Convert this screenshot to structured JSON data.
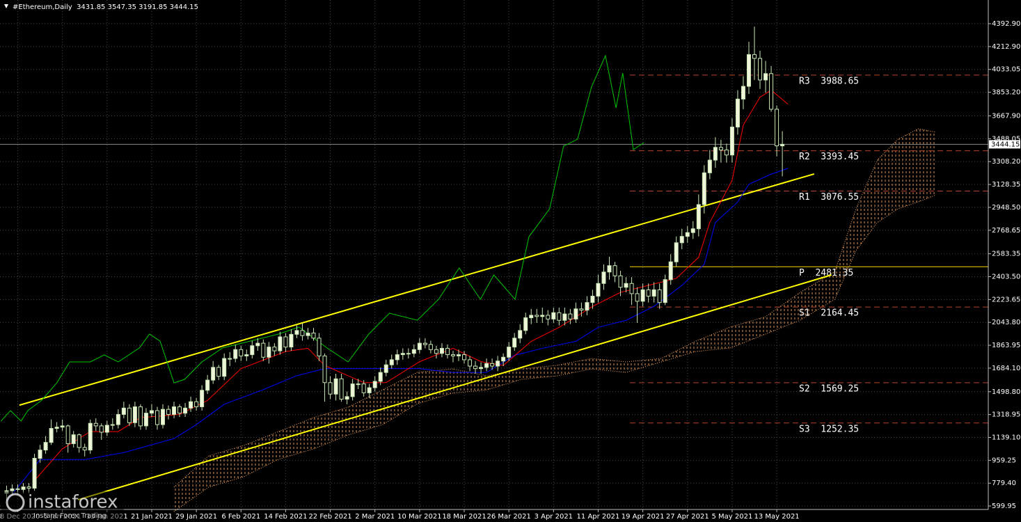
{
  "chart_data": {
    "type": "candlestick",
    "title": "#Ethereum,Daily  3431.85 3547.35 3191.85 3444.15",
    "xlim": [
      -1.18,
      175.9
    ],
    "ylim": [
      572.6,
      4579
    ],
    "grid": true,
    "yticks": [
      599.95,
      {
        "value": 779.4,
        "label": "779.40"
      },
      959.25,
      {
        "value": 1139.1,
        "label": "1139.10"
      },
      1318.95,
      {
        "value": 1498.8,
        "label": "1498.80"
      },
      {
        "value": 1684.1,
        "label": "1684.10"
      },
      1863.95,
      {
        "value": 2043.8,
        "label": "2043.80"
      },
      2223.65,
      {
        "value": 2403.5,
        "label": "2403.50"
      },
      2583.35,
      2768.65,
      {
        "value": 2948.5,
        "label": "2948.50"
      },
      3128.35,
      {
        "value": 3308.2,
        "label": "3308.20"
      },
      3488.05,
      {
        "value": 3667.9,
        "label": "3667.90"
      },
      {
        "value": 3853.2,
        "label": "3853.20"
      },
      4033.05,
      {
        "value": 4212.9,
        "label": "4212.90"
      },
      {
        "value": 4392.9,
        "label": "4392.90"
      }
    ],
    "xticks": [
      {
        "value": 2,
        "label": "28 Dec 2020"
      },
      {
        "value": 10,
        "label": "5 Jan 2021"
      },
      {
        "value": 18,
        "label": "13 Jan 2021"
      },
      {
        "value": 26,
        "label": "21 Jan 2021"
      },
      {
        "value": 34,
        "label": "29 Jan 2021"
      },
      {
        "value": 42,
        "label": "6 Feb 2021"
      },
      {
        "value": 50,
        "label": "14 Feb 2021"
      },
      {
        "value": 58,
        "label": "22 Feb 2021"
      },
      {
        "value": 66,
        "label": "2 Mar 2021"
      },
      {
        "value": 74,
        "label": "10 Mar 2021"
      },
      {
        "value": 82,
        "label": "18 Mar 2021"
      },
      {
        "value": 90,
        "label": "26 Mar 2021"
      },
      {
        "value": 98,
        "label": "3 Apr 2021"
      },
      {
        "value": 106,
        "label": "11 Apr 2021"
      },
      {
        "value": 114,
        "label": "19 Apr 2021"
      },
      {
        "value": 122,
        "label": "27 Apr 2021"
      },
      {
        "value": 130,
        "label": "5 May 2021"
      },
      {
        "value": 138,
        "label": "13 May 2021"
      }
    ],
    "up_color": "#eef5d8",
    "down_color": "#000000",
    "wick_color": "#c8e6b4",
    "open": [
      700,
      720,
      735,
      730,
      750,
      740,
      975,
      1040,
      1100,
      1210,
      1220,
      1230,
      1090,
      1160,
      1060,
      1040,
      1250,
      1230,
      1180,
      1235,
      1240,
      1320,
      1370,
      1255,
      1380,
      1230,
      1330,
      1350,
      1240,
      1360,
      1320,
      1380,
      1330,
      1370,
      1420,
      1380,
      1510,
      1590,
      1690,
      1620,
      1760,
      1760,
      1830,
      1780,
      1790,
      1860,
      1880,
      1770,
      1850,
      1820,
      1930,
      1850,
      1950,
      1980,
      1940,
      1960,
      1920,
      1780,
      1570,
      1480,
      1600,
      1440,
      1460,
      1560,
      1560,
      1490,
      1530,
      1580,
      1650,
      1710,
      1750,
      1790,
      1800,
      1800,
      1830,
      1880,
      1870,
      1830,
      1800,
      1840,
      1790,
      1780,
      1790,
      1750,
      1700,
      1680,
      1690,
      1720,
      1700,
      1740,
      1770,
      1850,
      1920,
      1980,
      2080,
      2100,
      2090,
      2100,
      2070,
      2120,
      2060,
      2110,
      2070,
      2150,
      2140,
      2200,
      2250,
      2350,
      2440,
      2490,
      2410,
      2320,
      2350,
      2270,
      2210,
      2300,
      2250,
      2300,
      2200,
      2380,
      2520,
      2670,
      2720,
      2750,
      2780,
      2970,
      3220,
      3320,
      3420,
      3400,
      3360,
      3580,
      3800,
      3900,
      4150,
      4120,
      3950,
      4000,
      3720,
      3431.85
    ],
    "high": [
      760,
      770,
      770,
      780,
      780,
      1010,
      1080,
      1150,
      1280,
      1260,
      1280,
      1240,
      1190,
      1170,
      1090,
      1280,
      1290,
      1250,
      1270,
      1290,
      1360,
      1420,
      1400,
      1420,
      1400,
      1370,
      1400,
      1380,
      1400,
      1390,
      1420,
      1400,
      1410,
      1460,
      1450,
      1550,
      1630,
      1740,
      1710,
      1800,
      1810,
      1870,
      1860,
      1830,
      1900,
      1920,
      1910,
      1890,
      1880,
      1970,
      1960,
      1990,
      2020,
      2040,
      2000,
      2000,
      1960,
      1800,
      1620,
      1640,
      1640,
      1500,
      1600,
      1600,
      1590,
      1560,
      1620,
      1690,
      1750,
      1790,
      1830,
      1840,
      1840,
      1870,
      1920,
      1920,
      1900,
      1860,
      1880,
      1870,
      1820,
      1830,
      1820,
      1780,
      1740,
      1730,
      1760,
      1760,
      1780,
      1800,
      1890,
      1960,
      2030,
      2120,
      2150,
      2150,
      2160,
      2140,
      2160,
      2160,
      2160,
      2150,
      2200,
      2200,
      2250,
      2300,
      2420,
      2500,
      2560,
      2520,
      2450,
      2400,
      2400,
      2320,
      2350,
      2350,
      2360,
      2350,
      2420,
      2580,
      2720,
      2780,
      2800,
      2840,
      3050,
      3280,
      3400,
      3500,
      3480,
      3450,
      3650,
      3870,
      3980,
      4250,
      4370,
      4180,
      4100,
      4060,
      3750,
      3547.35
    ],
    "low": [
      640,
      680,
      690,
      700,
      700,
      720,
      940,
      1010,
      1080,
      1180,
      1190,
      1020,
      1060,
      1020,
      990,
      1010,
      1190,
      1120,
      1150,
      1200,
      1210,
      1290,
      1230,
      1220,
      1200,
      1200,
      1300,
      1200,
      1210,
      1280,
      1290,
      1300,
      1300,
      1340,
      1350,
      1350,
      1480,
      1560,
      1590,
      1590,
      1700,
      1730,
      1740,
      1740,
      1760,
      1820,
      1740,
      1720,
      1780,
      1790,
      1810,
      1820,
      1920,
      1900,
      1910,
      1900,
      1740,
      1420,
      1440,
      1430,
      1420,
      1400,
      1430,
      1520,
      1460,
      1450,
      1500,
      1550,
      1620,
      1680,
      1710,
      1750,
      1760,
      1770,
      1800,
      1840,
      1800,
      1760,
      1770,
      1760,
      1730,
      1740,
      1720,
      1660,
      1640,
      1640,
      1660,
      1670,
      1660,
      1700,
      1740,
      1820,
      1880,
      1950,
      2030,
      2040,
      2040,
      2020,
      2040,
      2020,
      2020,
      2030,
      2040,
      2090,
      2100,
      2150,
      2200,
      2300,
      2380,
      2360,
      2250,
      2280,
      2180,
      2040,
      2170,
      2200,
      2200,
      2150,
      2180,
      2340,
      2480,
      2620,
      2670,
      2700,
      2720,
      2900,
      3170,
      3260,
      3300,
      3300,
      3300,
      3520,
      3720,
      3840,
      3950,
      3880,
      3850,
      3700,
      3350,
      3191.85
    ],
    "close": [
      720,
      735,
      730,
      750,
      740,
      975,
      1040,
      1100,
      1210,
      1220,
      1230,
      1090,
      1160,
      1060,
      1040,
      1250,
      1230,
      1180,
      1235,
      1240,
      1320,
      1370,
      1255,
      1380,
      1230,
      1330,
      1350,
      1240,
      1360,
      1320,
      1380,
      1330,
      1370,
      1420,
      1380,
      1510,
      1590,
      1690,
      1620,
      1760,
      1760,
      1830,
      1780,
      1790,
      1860,
      1880,
      1770,
      1850,
      1820,
      1930,
      1850,
      1950,
      1980,
      1940,
      1960,
      1920,
      1780,
      1570,
      1480,
      1600,
      1440,
      1460,
      1560,
      1560,
      1490,
      1530,
      1580,
      1650,
      1710,
      1750,
      1790,
      1800,
      1800,
      1830,
      1880,
      1870,
      1830,
      1800,
      1840,
      1790,
      1780,
      1790,
      1750,
      1700,
      1680,
      1690,
      1720,
      1700,
      1740,
      1770,
      1850,
      1920,
      1980,
      2080,
      2100,
      2090,
      2100,
      2070,
      2120,
      2060,
      2110,
      2070,
      2150,
      2140,
      2200,
      2250,
      2350,
      2440,
      2490,
      2410,
      2320,
      2350,
      2270,
      2210,
      2300,
      2250,
      2300,
      2200,
      2380,
      2520,
      2670,
      2720,
      2750,
      2780,
      2970,
      3220,
      3320,
      3420,
      3400,
      3360,
      3580,
      3800,
      3900,
      4150,
      4120,
      3950,
      4000,
      3720,
      3432,
      3444.15
    ],
    "tenkan": {
      "color": "#ff0000",
      "x": [
        5,
        10,
        15,
        20,
        24,
        31,
        36,
        42,
        50,
        54,
        57,
        64,
        68,
        74,
        80,
        85,
        89,
        94,
        99,
        105,
        110,
        115,
        120,
        124,
        126,
        130,
        132,
        135,
        137,
        140
      ],
      "values": [
        800,
        1050,
        1185,
        1185,
        1295,
        1320,
        1430,
        1680,
        1815,
        1840,
        1705,
        1570,
        1570,
        1735,
        1840,
        1735,
        1705,
        1895,
        2005,
        2170,
        2280,
        2335,
        2390,
        2555,
        2830,
        3160,
        3595,
        3815,
        3870,
        3760
      ]
    },
    "kijun": {
      "color": "#0000ff",
      "x": [
        0,
        6,
        14,
        21,
        30,
        34,
        39,
        46,
        52,
        57,
        65,
        74,
        80,
        86,
        91,
        96,
        102,
        106,
        111,
        116,
        121,
        125,
        127,
        131,
        133,
        137,
        140
      ],
      "values": [
        638,
        965,
        965,
        1020,
        1130,
        1240,
        1400,
        1515,
        1625,
        1680,
        1680,
        1680,
        1650,
        1650,
        1785,
        1840,
        1895,
        2005,
        2060,
        2170,
        2335,
        2500,
        2830,
        2990,
        3130,
        3210,
        3255
      ]
    },
    "chikou": {
      "color": "#00c800",
      "x": [
        -1,
        0.7,
        2.6,
        3.8,
        6.3,
        9,
        11.3,
        15,
        17.5,
        20,
        23.8,
        25.6,
        27.5,
        30,
        31.9,
        35,
        38.7,
        43.7,
        48.7,
        52.4,
        57.4,
        61.2,
        64.9,
        68.6,
        73.6,
        77.4,
        81.1,
        84.9,
        87.3,
        91.1,
        93.6,
        97.3,
        99.8,
        102.3,
        104.8,
        107.3,
        109.2,
        110.4,
        112.3,
        114.2
      ],
      "values": [
        1268,
        1350,
        1268,
        1350,
        1432,
        1568,
        1733,
        1733,
        1788,
        1733,
        1843,
        1952,
        1897,
        1568,
        1596,
        1733,
        1843,
        1897,
        1952,
        2007,
        1843,
        1733,
        1952,
        2116,
        2061,
        2225,
        2472,
        2225,
        2417,
        2225,
        2718,
        2937,
        3430,
        3484,
        3895,
        4141,
        3731,
        4004,
        3402,
        3457
      ]
    },
    "cloud": {
      "color": "#f4a460",
      "x": [
        30,
        36.2,
        42.5,
        48.7,
        55,
        61.2,
        67.4,
        73.6,
        79.9,
        86.1,
        92.3,
        98.6,
        104.8,
        111,
        117.3,
        123.5,
        129.7,
        136,
        142.2,
        148.4,
        152.2,
        156,
        159.7,
        163.4,
        166.5
      ],
      "upper": [
        748,
        994,
        1076,
        1185,
        1295,
        1377,
        1514,
        1651,
        1678,
        1623,
        1678,
        1706,
        1760,
        1733,
        1760,
        1897,
        2007,
        2089,
        2280,
        2444,
        2937,
        3320,
        3484,
        3567,
        3539
      ],
      "lower": [
        556,
        748,
        830,
        967,
        1049,
        1158,
        1240,
        1404,
        1487,
        1514,
        1596,
        1623,
        1678,
        1651,
        1733,
        1815,
        1843,
        1952,
        2061,
        2225,
        2608,
        2828,
        2937,
        2992,
        3046
      ]
    },
    "channels": [
      {
        "color": "#ffff00",
        "x": [
          2.3,
          144.7
        ],
        "values": [
          1393,
          3211
        ]
      },
      {
        "color": "#ffff00",
        "x": [
          12.8,
          147.8
        ],
        "values": [
          649,
          2417
        ]
      }
    ],
    "pivot_color": "#b5442c",
    "pivot_p_color": "#ffd700",
    "pivots": [
      {
        "value": 3988.65,
        "label": "R3  3988.65"
      },
      {
        "value": 3393.45,
        "label": "R2  3393.45"
      },
      {
        "value": 3076.55,
        "label": "R1  3076.55"
      },
      {
        "value": 2481.35,
        "label": "P  2481.35"
      },
      {
        "value": 2164.45,
        "label": "S1  2164.45"
      },
      {
        "value": 1569.25,
        "label": "S2  1569.25"
      },
      {
        "value": 1252.35,
        "label": "S3  1252.35"
      }
    ],
    "last_price": 3444.15,
    "watermark": "instaforex",
    "watermark_tagline": "Instant Forex Trading"
  }
}
